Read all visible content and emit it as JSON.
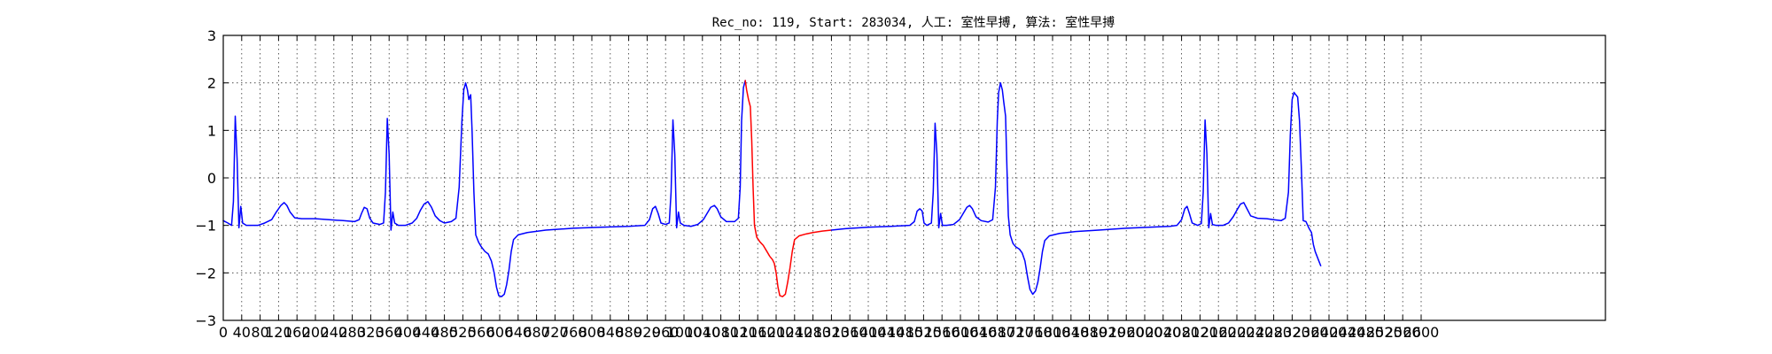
{
  "chart_data": {
    "type": "line",
    "title": "Rec_no: 119, Start: 283034, 人工: 室性早搏, 算法: 室性早搏",
    "xlabel": "",
    "ylabel": "",
    "xlim": [
      0,
      3000
    ],
    "ylim": [
      -3,
      3
    ],
    "grid": true,
    "x_ticks": [
      0,
      40,
      80,
      120,
      160,
      200,
      240,
      280,
      320,
      360,
      400,
      440,
      480,
      520,
      560,
      600,
      640,
      680,
      720,
      760,
      800,
      840,
      880,
      920,
      960,
      1000,
      1040,
      1080,
      1120,
      1160,
      1200,
      1240,
      1280,
      1320,
      1360,
      1400,
      1440,
      1480,
      1520,
      1560,
      1600,
      1640,
      1680,
      1720,
      1760,
      1800,
      1840,
      1880,
      1920,
      1960,
      2000,
      2040,
      2080,
      2120,
      2160,
      2200,
      2240,
      2280,
      2320,
      2360,
      2400,
      2440,
      2480,
      2520,
      2560,
      2600
    ],
    "x_tick_labels": [
      "0",
      "40",
      "80",
      "120",
      "160",
      "200",
      "240",
      "280",
      "320",
      "360",
      "400",
      "440",
      "480",
      "520",
      "560",
      "600",
      "640",
      "680",
      "720",
      "760",
      "800",
      "840",
      "880",
      "920",
      "960",
      "1000",
      "1040",
      "1080",
      "1120",
      "1160",
      "1200",
      "1240",
      "1280",
      "1320",
      "1360",
      "1400",
      "1440",
      "1480",
      "1520",
      "1560",
      "1600",
      "1640",
      "1680",
      "1720",
      "1760",
      "1800",
      "1840",
      "1880",
      "1920",
      "1960",
      "2000",
      "2040",
      "2080",
      "2120",
      "2160",
      "2200",
      "2240",
      "2280",
      "2320",
      "2360",
      "2400",
      "2440",
      "2480",
      "2520",
      "2560",
      "2600"
    ],
    "y_ticks": [
      -3,
      -2,
      -1,
      0,
      1,
      2,
      3
    ],
    "y_tick_labels": [
      "−3",
      "−2",
      "−1",
      "0",
      "1",
      "2",
      "3"
    ],
    "series": [
      {
        "color": "#0000ff",
        "points": [
          [
            0,
            -0.9
          ],
          [
            10,
            -0.95
          ],
          [
            18,
            -1.0
          ],
          [
            22,
            -0.5
          ],
          [
            26,
            1.3
          ],
          [
            30,
            0.4
          ],
          [
            34,
            -1.05
          ],
          [
            38,
            -0.6
          ],
          [
            42,
            -0.95
          ],
          [
            50,
            -1.0
          ],
          [
            60,
            -1.0
          ],
          [
            75,
            -1.0
          ],
          [
            90,
            -0.95
          ],
          [
            105,
            -0.88
          ],
          [
            115,
            -0.72
          ],
          [
            125,
            -0.58
          ],
          [
            132,
            -0.52
          ],
          [
            138,
            -0.58
          ],
          [
            145,
            -0.72
          ],
          [
            155,
            -0.84
          ],
          [
            170,
            -0.86
          ],
          [
            200,
            -0.86
          ],
          [
            230,
            -0.88
          ],
          [
            260,
            -0.9
          ],
          [
            285,
            -0.92
          ],
          [
            295,
            -0.88
          ],
          [
            300,
            -0.75
          ],
          [
            306,
            -0.62
          ],
          [
            312,
            -0.65
          ],
          [
            318,
            -0.85
          ],
          [
            325,
            -0.95
          ],
          [
            340,
            -0.98
          ],
          [
            348,
            -0.95
          ],
          [
            352,
            -0.3
          ],
          [
            356,
            1.25
          ],
          [
            360,
            0.5
          ],
          [
            364,
            -1.1
          ],
          [
            368,
            -0.72
          ],
          [
            372,
            -0.95
          ],
          [
            380,
            -1.0
          ],
          [
            395,
            -1.0
          ],
          [
            410,
            -0.95
          ],
          [
            420,
            -0.85
          ],
          [
            428,
            -0.68
          ],
          [
            436,
            -0.55
          ],
          [
            444,
            -0.5
          ],
          [
            452,
            -0.62
          ],
          [
            460,
            -0.8
          ],
          [
            470,
            -0.9
          ],
          [
            480,
            -0.95
          ],
          [
            495,
            -0.92
          ],
          [
            505,
            -0.85
          ],
          [
            512,
            -0.2
          ],
          [
            518,
            1.2
          ],
          [
            522,
            1.85
          ],
          [
            526,
            2.0
          ],
          [
            530,
            1.85
          ],
          [
            533,
            1.65
          ],
          [
            537,
            1.75
          ],
          [
            540,
            1.0
          ],
          [
            544,
            -0.3
          ],
          [
            548,
            -1.2
          ],
          [
            554,
            -1.35
          ],
          [
            560,
            -1.45
          ],
          [
            568,
            -1.55
          ],
          [
            575,
            -1.6
          ],
          [
            582,
            -1.75
          ],
          [
            588,
            -2.0
          ],
          [
            593,
            -2.3
          ],
          [
            598,
            -2.48
          ],
          [
            604,
            -2.5
          ],
          [
            610,
            -2.45
          ],
          [
            615,
            -2.25
          ],
          [
            620,
            -1.95
          ],
          [
            625,
            -1.55
          ],
          [
            630,
            -1.3
          ],
          [
            640,
            -1.2
          ],
          [
            660,
            -1.15
          ],
          [
            700,
            -1.1
          ],
          [
            760,
            -1.06
          ],
          [
            820,
            -1.04
          ],
          [
            880,
            -1.02
          ],
          [
            915,
            -1.0
          ],
          [
            925,
            -0.88
          ],
          [
            932,
            -0.65
          ],
          [
            938,
            -0.6
          ],
          [
            944,
            -0.75
          ],
          [
            950,
            -0.95
          ],
          [
            960,
            -0.98
          ],
          [
            968,
            -0.95
          ],
          [
            972,
            -0.3
          ],
          [
            976,
            1.22
          ],
          [
            980,
            0.5
          ],
          [
            984,
            -1.05
          ],
          [
            988,
            -0.72
          ],
          [
            992,
            -0.95
          ],
          [
            1000,
            -1.0
          ],
          [
            1015,
            -1.02
          ],
          [
            1030,
            -0.98
          ],
          [
            1042,
            -0.88
          ],
          [
            1050,
            -0.75
          ],
          [
            1058,
            -0.62
          ],
          [
            1066,
            -0.58
          ],
          [
            1072,
            -0.65
          ],
          [
            1080,
            -0.82
          ],
          [
            1092,
            -0.92
          ],
          [
            1110,
            -0.92
          ],
          [
            1118,
            -0.85
          ],
          [
            1122,
            -0.2
          ],
          [
            1125,
            1.2
          ],
          [
            1129,
            1.9
          ],
          [
            1133,
            2.05
          ]
        ]
      },
      {
        "color": "#ff0000",
        "points": [
          [
            1133,
            2.05
          ],
          [
            1136,
            1.85
          ],
          [
            1140,
            1.65
          ],
          [
            1144,
            1.5
          ],
          [
            1147,
            0.8
          ],
          [
            1150,
            -0.2
          ],
          [
            1153,
            -1.0
          ],
          [
            1158,
            -1.25
          ],
          [
            1165,
            -1.35
          ],
          [
            1172,
            -1.42
          ],
          [
            1180,
            -1.55
          ],
          [
            1186,
            -1.65
          ],
          [
            1192,
            -1.72
          ],
          [
            1196,
            -1.8
          ],
          [
            1200,
            -2.0
          ],
          [
            1204,
            -2.3
          ],
          [
            1208,
            -2.48
          ],
          [
            1214,
            -2.5
          ],
          [
            1220,
            -2.45
          ],
          [
            1225,
            -2.2
          ],
          [
            1230,
            -1.9
          ],
          [
            1235,
            -1.55
          ],
          [
            1240,
            -1.3
          ],
          [
            1250,
            -1.22
          ],
          [
            1265,
            -1.18
          ],
          [
            1280,
            -1.15
          ],
          [
            1300,
            -1.12
          ],
          [
            1320,
            -1.1
          ]
        ]
      },
      {
        "color": "#0000ff",
        "points": [
          [
            1320,
            -1.1
          ],
          [
            1350,
            -1.07
          ],
          [
            1400,
            -1.04
          ],
          [
            1450,
            -1.02
          ],
          [
            1490,
            -1.0
          ],
          [
            1500,
            -0.92
          ],
          [
            1506,
            -0.7
          ],
          [
            1512,
            -0.65
          ],
          [
            1517,
            -0.7
          ],
          [
            1521,
            -0.95
          ],
          [
            1527,
            -1.0
          ],
          [
            1537,
            -0.95
          ],
          [
            1541,
            -0.3
          ],
          [
            1545,
            1.15
          ],
          [
            1549,
            0.5
          ],
          [
            1553,
            -1.05
          ],
          [
            1557,
            -0.75
          ],
          [
            1561,
            -1.0
          ],
          [
            1570,
            -1.0
          ],
          [
            1585,
            -0.98
          ],
          [
            1598,
            -0.88
          ],
          [
            1606,
            -0.75
          ],
          [
            1614,
            -0.62
          ],
          [
            1620,
            -0.58
          ],
          [
            1626,
            -0.65
          ],
          [
            1634,
            -0.82
          ],
          [
            1645,
            -0.9
          ],
          [
            1660,
            -0.93
          ],
          [
            1670,
            -0.88
          ],
          [
            1676,
            -0.2
          ],
          [
            1680,
            1.2
          ],
          [
            1683,
            1.8
          ],
          [
            1687,
            2.0
          ],
          [
            1691,
            1.85
          ],
          [
            1694,
            1.6
          ],
          [
            1698,
            1.3
          ],
          [
            1701,
            0.2
          ],
          [
            1704,
            -0.8
          ],
          [
            1708,
            -1.2
          ],
          [
            1714,
            -1.38
          ],
          [
            1720,
            -1.45
          ],
          [
            1728,
            -1.5
          ],
          [
            1734,
            -1.58
          ],
          [
            1740,
            -1.75
          ],
          [
            1746,
            -2.1
          ],
          [
            1751,
            -2.35
          ],
          [
            1757,
            -2.45
          ],
          [
            1763,
            -2.38
          ],
          [
            1768,
            -2.2
          ],
          [
            1773,
            -1.9
          ],
          [
            1778,
            -1.55
          ],
          [
            1783,
            -1.32
          ],
          [
            1793,
            -1.22
          ],
          [
            1815,
            -1.17
          ],
          [
            1850,
            -1.13
          ],
          [
            1900,
            -1.1
          ],
          [
            1960,
            -1.06
          ],
          [
            2010,
            -1.04
          ],
          [
            2055,
            -1.02
          ],
          [
            2070,
            -1.0
          ],
          [
            2080,
            -0.88
          ],
          [
            2087,
            -0.65
          ],
          [
            2092,
            -0.6
          ],
          [
            2097,
            -0.75
          ],
          [
            2103,
            -0.95
          ],
          [
            2115,
            -1.0
          ],
          [
            2123,
            -0.96
          ],
          [
            2127,
            -0.3
          ],
          [
            2131,
            1.22
          ],
          [
            2135,
            0.5
          ],
          [
            2139,
            -1.05
          ],
          [
            2143,
            -0.75
          ],
          [
            2147,
            -0.98
          ],
          [
            2155,
            -1.0
          ],
          [
            2170,
            -1.0
          ],
          [
            2182,
            -0.95
          ],
          [
            2192,
            -0.82
          ],
          [
            2200,
            -0.68
          ],
          [
            2208,
            -0.55
          ],
          [
            2215,
            -0.52
          ],
          [
            2222,
            -0.65
          ],
          [
            2230,
            -0.8
          ],
          [
            2245,
            -0.85
          ],
          [
            2265,
            -0.86
          ],
          [
            2280,
            -0.88
          ],
          [
            2296,
            -0.9
          ],
          [
            2305,
            -0.85
          ],
          [
            2312,
            -0.3
          ],
          [
            2316,
            0.9
          ],
          [
            2320,
            1.65
          ],
          [
            2324,
            1.8
          ],
          [
            2328,
            1.75
          ],
          [
            2332,
            1.7
          ],
          [
            2336,
            1.2
          ],
          [
            2340,
            0.2
          ],
          [
            2344,
            -0.9
          ],
          [
            2350,
            -0.92
          ],
          [
            2356,
            -1.05
          ],
          [
            2362,
            -1.15
          ],
          [
            2366,
            -1.4
          ],
          [
            2370,
            -1.55
          ],
          [
            2374,
            -1.65
          ],
          [
            2378,
            -1.75
          ],
          [
            2382,
            -1.85
          ]
        ]
      }
    ]
  }
}
